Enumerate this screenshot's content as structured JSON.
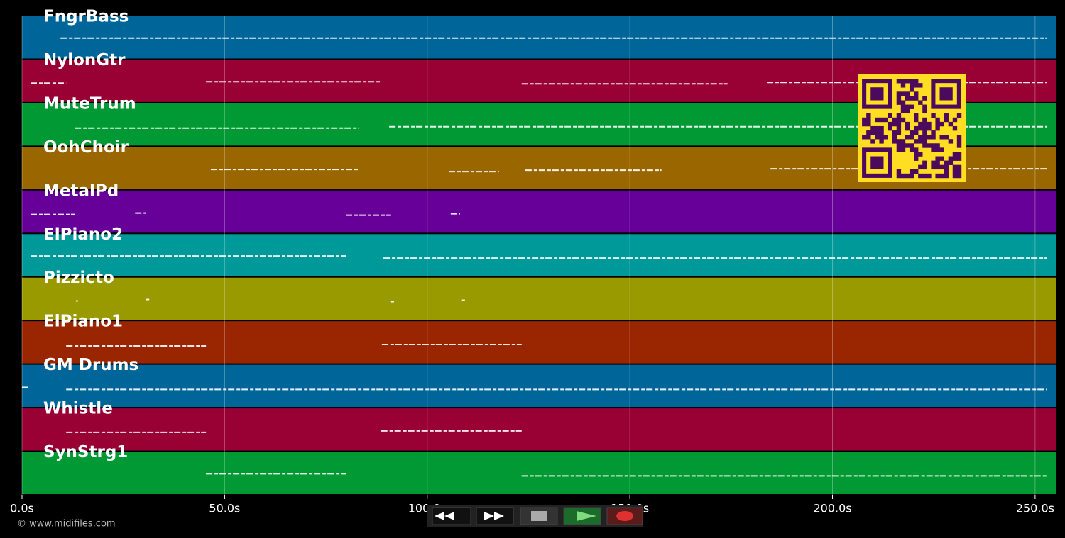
{
  "chart_data": {
    "type": "timeline",
    "xlim": [
      0,
      255.1
    ],
    "xticks": [
      {
        "value": 0,
        "label": "0.0s"
      },
      {
        "value": 50,
        "label": "50.0s"
      },
      {
        "value": 100,
        "label": "100.0s"
      },
      {
        "value": 150,
        "label": "150.0s"
      },
      {
        "value": 200,
        "label": "200.0s"
      },
      {
        "value": 250,
        "label": "250.0s"
      }
    ],
    "grid": true,
    "series": [
      {
        "name": "FngrBass",
        "color": "#00669a",
        "segments": [
          [
            9.5,
            253
          ]
        ]
      },
      {
        "name": "NylonGtr",
        "color": "#990033",
        "segments": [
          [
            2.1,
            10.9
          ],
          [
            45.4,
            88.3
          ],
          [
            123.3,
            174.1
          ],
          [
            183.8,
            253
          ]
        ]
      },
      {
        "name": "MuteTrum",
        "color": "#009933",
        "segments": [
          [
            13,
            83
          ],
          [
            90.6,
            253
          ]
        ]
      },
      {
        "name": "OohChoir",
        "color": "#996600",
        "segments": [
          [
            46.6,
            83
          ],
          [
            105.3,
            117.7
          ],
          [
            124.2,
            157.8
          ],
          [
            184.7,
            253
          ]
        ]
      },
      {
        "name": "MetalPd",
        "color": "#660099",
        "segments": [
          [
            2.1,
            13
          ],
          [
            27.9,
            30.5
          ],
          [
            79.9,
            90.9
          ],
          [
            105.8,
            108.1
          ]
        ]
      },
      {
        "name": "ElPiano2",
        "color": "#009999",
        "segments": [
          [
            2.1,
            80
          ],
          [
            89.2,
            253
          ]
        ]
      },
      {
        "name": "Pizzicto",
        "color": "#999900",
        "segments": [
          [
            13.3,
            13.8
          ],
          [
            30.5,
            31.4
          ],
          [
            90.9,
            91.8
          ],
          [
            108.4,
            109.3
          ]
        ]
      },
      {
        "name": "ElPiano1",
        "color": "#992600",
        "segments": [
          [
            10.9,
            45.4
          ],
          [
            88.8,
            123.3
          ]
        ]
      },
      {
        "name": "GM Drums",
        "color": "#00669a",
        "segments": [
          [
            0,
            1.6
          ],
          [
            10.9,
            253
          ]
        ]
      },
      {
        "name": "Whistle",
        "color": "#990033",
        "segments": [
          [
            10.9,
            45.4
          ],
          [
            88.6,
            123.3
          ]
        ]
      },
      {
        "name": "SynStrg1",
        "color": "#009933",
        "segments": [
          [
            45.4,
            80
          ],
          [
            123.3,
            253
          ]
        ]
      }
    ]
  },
  "footer": {
    "copyright": "© www.midifiles.com"
  }
}
